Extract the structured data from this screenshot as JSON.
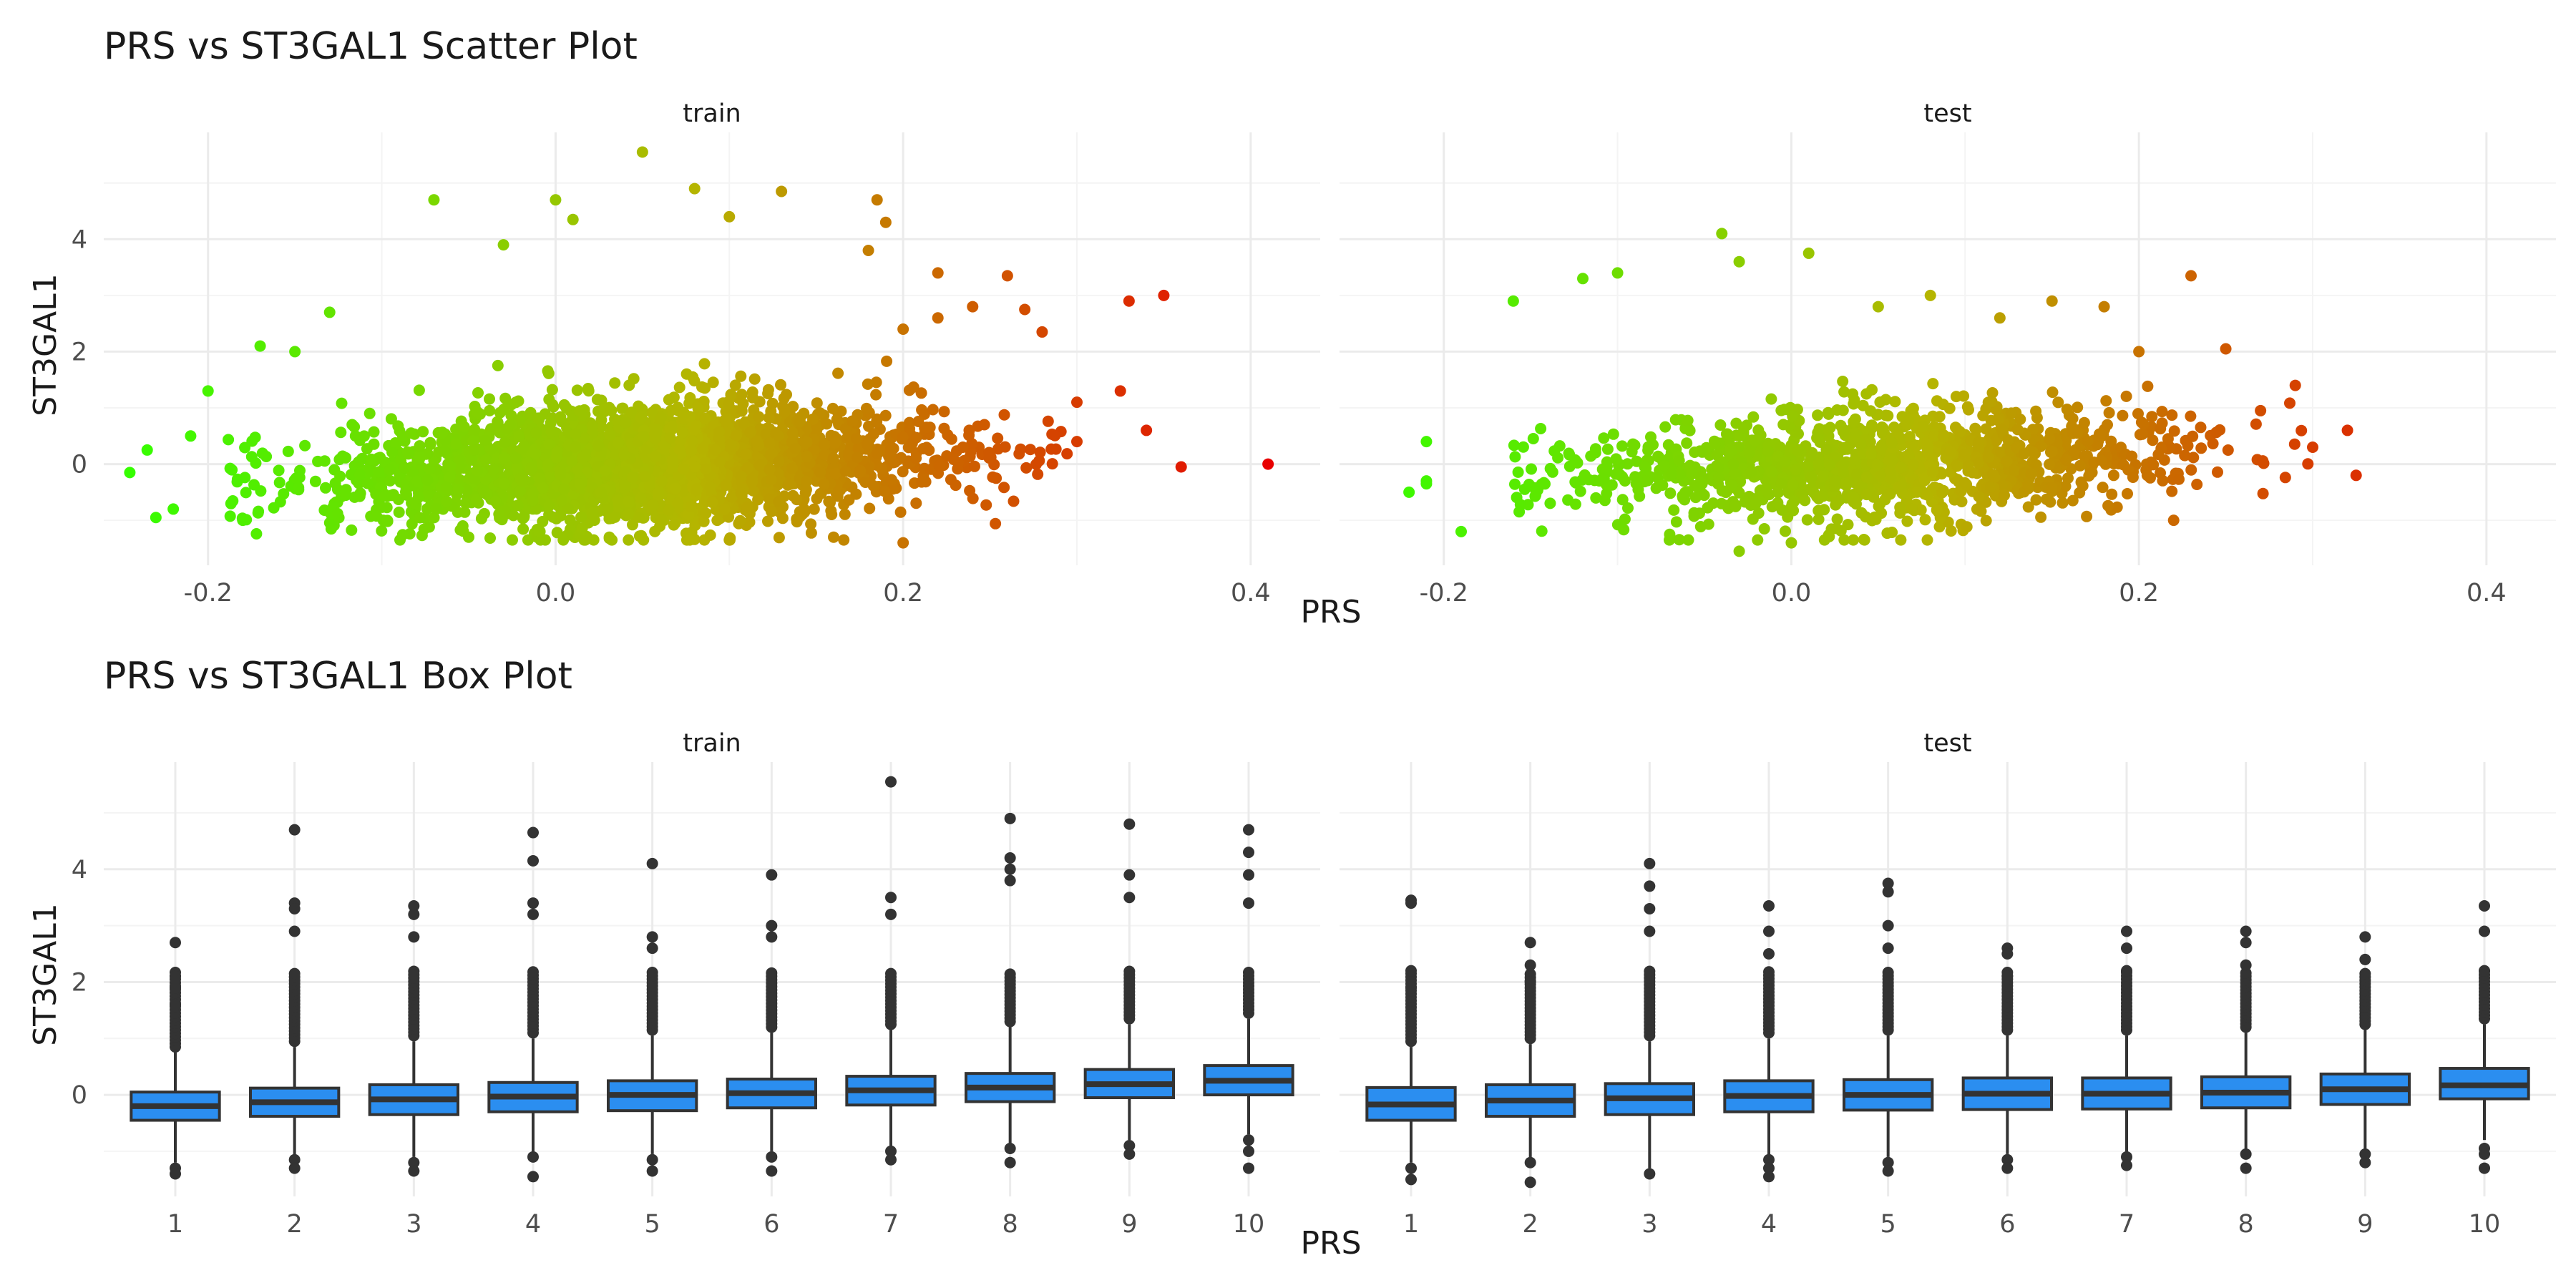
{
  "chart_data": [
    {
      "type": "scatter",
      "title": "PRS vs ST3GAL1 Scatter Plot",
      "xlabel": "PRS",
      "ylabel": "ST3GAL1",
      "facets": [
        "train",
        "test"
      ],
      "xlim": [
        -0.26,
        0.44
      ],
      "ylim": [
        -1.8,
        5.9
      ],
      "x_ticks": [
        -0.2,
        0.0,
        0.2,
        0.4
      ],
      "x_tick_labels": [
        "-0.2",
        "0.0",
        "0.2",
        "0.4"
      ],
      "y_ticks": [
        0,
        2,
        4
      ],
      "y_tick_labels": [
        "0",
        "2",
        "4"
      ],
      "color_scale": {
        "low": "#33ff00",
        "mid": "#b5b500",
        "high": "#e80000",
        "domain": [
          -0.25,
          0.41
        ]
      },
      "grid": true,
      "legend": "none",
      "panels": [
        {
          "name": "train",
          "bulk": {
            "x_range": [
              -0.19,
              0.3
            ],
            "mean_slope": 2.1,
            "spread_sd": 0.55,
            "n_points": 2600
          },
          "points": [
            {
              "x": 0.41,
              "y": 0.0
            },
            {
              "x": 0.36,
              "y": -0.05
            },
            {
              "x": 0.35,
              "y": 3.0
            },
            {
              "x": 0.33,
              "y": 2.9
            },
            {
              "x": 0.34,
              "y": 0.6
            },
            {
              "x": 0.325,
              "y": 1.3
            },
            {
              "x": 0.3,
              "y": 1.1
            },
            {
              "x": 0.3,
              "y": 0.4
            },
            {
              "x": 0.28,
              "y": 2.35
            },
            {
              "x": 0.26,
              "y": 3.35
            },
            {
              "x": 0.27,
              "y": 2.75
            },
            {
              "x": 0.24,
              "y": 2.8
            },
            {
              "x": 0.22,
              "y": 2.6
            },
            {
              "x": 0.2,
              "y": 2.4
            },
            {
              "x": 0.18,
              "y": 3.8
            },
            {
              "x": 0.185,
              "y": 4.7
            },
            {
              "x": 0.19,
              "y": 4.3
            },
            {
              "x": 0.13,
              "y": 4.85
            },
            {
              "x": 0.08,
              "y": 4.9
            },
            {
              "x": 0.05,
              "y": 5.55
            },
            {
              "x": -0.07,
              "y": 4.7
            },
            {
              "x": -0.03,
              "y": 3.9
            },
            {
              "x": 0.0,
              "y": 4.7
            },
            {
              "x": 0.01,
              "y": 4.35
            },
            {
              "x": -0.13,
              "y": 2.7
            },
            {
              "x": -0.17,
              "y": 2.1
            },
            {
              "x": -0.2,
              "y": 1.3
            },
            {
              "x": -0.21,
              "y": 0.5
            },
            {
              "x": -0.235,
              "y": 0.25
            },
            {
              "x": -0.245,
              "y": -0.15
            },
            {
              "x": -0.22,
              "y": -0.8
            },
            {
              "x": -0.23,
              "y": -0.95
            },
            {
              "x": 0.2,
              "y": -1.4
            },
            {
              "x": 0.16,
              "y": -1.3
            },
            {
              "x": -0.15,
              "y": 2.0
            },
            {
              "x": 0.1,
              "y": 4.4
            },
            {
              "x": 0.22,
              "y": 3.4
            },
            {
              "x": -0.18,
              "y": -1.0
            },
            {
              "x": -0.05,
              "y": -1.3
            },
            {
              "x": 0.1,
              "y": -1.35
            }
          ]
        },
        {
          "name": "test",
          "bulk": {
            "x_range": [
              -0.16,
              0.3
            ],
            "mean_slope": 1.9,
            "spread_sd": 0.5,
            "n_points": 1300
          },
          "points": [
            {
              "x": 0.325,
              "y": -0.2
            },
            {
              "x": 0.32,
              "y": 0.6
            },
            {
              "x": 0.3,
              "y": 0.3
            },
            {
              "x": 0.29,
              "y": 1.4
            },
            {
              "x": 0.27,
              "y": 0.95
            },
            {
              "x": 0.25,
              "y": 2.05
            },
            {
              "x": 0.23,
              "y": 3.35
            },
            {
              "x": 0.2,
              "y": 2.0
            },
            {
              "x": 0.18,
              "y": 2.8
            },
            {
              "x": 0.15,
              "y": 2.9
            },
            {
              "x": 0.12,
              "y": 2.6
            },
            {
              "x": 0.08,
              "y": 3.0
            },
            {
              "x": 0.05,
              "y": 2.8
            },
            {
              "x": 0.01,
              "y": 3.75
            },
            {
              "x": -0.03,
              "y": 3.6
            },
            {
              "x": -0.04,
              "y": 4.1
            },
            {
              "x": -0.1,
              "y": 3.4
            },
            {
              "x": -0.12,
              "y": 3.3
            },
            {
              "x": -0.16,
              "y": 2.9
            },
            {
              "x": -0.21,
              "y": 0.4
            },
            {
              "x": -0.22,
              "y": -0.5
            },
            {
              "x": -0.19,
              "y": -1.2
            },
            {
              "x": -0.21,
              "y": -0.3
            },
            {
              "x": -0.21,
              "y": -0.35
            },
            {
              "x": -0.03,
              "y": -1.55
            },
            {
              "x": 0.0,
              "y": -1.4
            },
            {
              "x": -0.07,
              "y": -1.25
            },
            {
              "x": 0.22,
              "y": -1.0
            }
          ]
        }
      ]
    },
    {
      "type": "box",
      "title": "PRS vs ST3GAL1 Box Plot",
      "xlabel": "PRS",
      "ylabel": "ST3GAL1",
      "facets": [
        "train",
        "test"
      ],
      "categories": [
        "1",
        "2",
        "3",
        "4",
        "5",
        "6",
        "7",
        "8",
        "9",
        "10"
      ],
      "ylim": [
        -1.8,
        5.9
      ],
      "y_ticks": [
        0,
        2,
        4
      ],
      "y_tick_labels": [
        "0",
        "2",
        "4"
      ],
      "box_color": "#2b8ef0",
      "grid": true,
      "panels": [
        {
          "name": "train",
          "boxes": [
            {
              "q1": -0.45,
              "median": -0.2,
              "q3": 0.05,
              "lower": -1.2,
              "upper": 0.75,
              "out_high": [
                0.85,
                2.7,
                2.1,
                1.9,
                1.6
              ],
              "out_low": [
                -1.3,
                -1.4
              ]
            },
            {
              "q1": -0.38,
              "median": -0.13,
              "q3": 0.12,
              "lower": -1.1,
              "upper": 0.85,
              "out_high": [
                0.95,
                4.7,
                3.4,
                3.3,
                2.9
              ],
              "out_low": [
                -1.15,
                -1.3
              ]
            },
            {
              "q1": -0.35,
              "median": -0.08,
              "q3": 0.18,
              "lower": -1.1,
              "upper": 0.95,
              "out_high": [
                1.05,
                3.35,
                3.2,
                2.8
              ],
              "out_low": [
                -1.2,
                -1.35
              ]
            },
            {
              "q1": -0.3,
              "median": -0.03,
              "q3": 0.22,
              "lower": -1.05,
              "upper": 1.0,
              "out_high": [
                1.1,
                4.65,
                4.15,
                3.4,
                3.2
              ],
              "out_low": [
                -1.1,
                -1.45
              ]
            },
            {
              "q1": -0.28,
              "median": 0.0,
              "q3": 0.25,
              "lower": -1.05,
              "upper": 1.05,
              "out_high": [
                1.15,
                4.1,
                2.8,
                2.6
              ],
              "out_low": [
                -1.15,
                -1.35
              ]
            },
            {
              "q1": -0.23,
              "median": 0.03,
              "q3": 0.28,
              "lower": -1.0,
              "upper": 1.1,
              "out_high": [
                1.2,
                3.9,
                3.0,
                2.8
              ],
              "out_low": [
                -1.1,
                -1.35
              ]
            },
            {
              "q1": -0.18,
              "median": 0.08,
              "q3": 0.33,
              "lower": -0.95,
              "upper": 1.15,
              "out_high": [
                1.25,
                5.55,
                3.5,
                3.2
              ],
              "out_low": [
                -1.0,
                -1.15
              ]
            },
            {
              "q1": -0.12,
              "median": 0.13,
              "q3": 0.38,
              "lower": -0.9,
              "upper": 1.2,
              "out_high": [
                1.3,
                4.9,
                4.2,
                4.0,
                3.8
              ],
              "out_low": [
                -0.95,
                -1.2
              ]
            },
            {
              "q1": -0.05,
              "median": 0.19,
              "q3": 0.45,
              "lower": -0.8,
              "upper": 1.25,
              "out_high": [
                1.35,
                4.8,
                3.9,
                3.5
              ],
              "out_low": [
                -0.9,
                -1.05
              ]
            },
            {
              "q1": 0.0,
              "median": 0.25,
              "q3": 0.52,
              "lower": -0.7,
              "upper": 1.35,
              "out_high": [
                1.45,
                4.7,
                4.3,
                3.9,
                3.4
              ],
              "out_low": [
                -0.8,
                -1.0,
                -1.3
              ]
            }
          ]
        },
        {
          "name": "test",
          "boxes": [
            {
              "q1": -0.45,
              "median": -0.17,
              "q3": 0.13,
              "lower": -1.2,
              "upper": 0.85,
              "out_high": [
                0.95,
                3.45,
                3.4,
                2.2,
                1.9
              ],
              "out_low": [
                -1.3,
                -1.5
              ]
            },
            {
              "q1": -0.38,
              "median": -0.1,
              "q3": 0.18,
              "lower": -1.15,
              "upper": 0.9,
              "out_high": [
                1.0,
                2.7,
                2.3,
                2.0
              ],
              "out_low": [
                -1.2,
                -1.55
              ]
            },
            {
              "q1": -0.35,
              "median": -0.06,
              "q3": 0.2,
              "lower": -1.3,
              "upper": 0.95,
              "out_high": [
                1.05,
                4.1,
                3.7,
                3.3,
                2.9
              ],
              "out_low": [
                -1.4
              ]
            },
            {
              "q1": -0.3,
              "median": -0.02,
              "q3": 0.25,
              "lower": -1.1,
              "upper": 1.0,
              "out_high": [
                1.1,
                3.35,
                2.9,
                2.5
              ],
              "out_low": [
                -1.15,
                -1.3,
                -1.45
              ]
            },
            {
              "q1": -0.27,
              "median": 0.0,
              "q3": 0.27,
              "lower": -1.1,
              "upper": 1.05,
              "out_high": [
                1.15,
                3.75,
                3.6,
                3.0,
                2.6
              ],
              "out_low": [
                -1.2,
                -1.35
              ]
            },
            {
              "q1": -0.26,
              "median": 0.02,
              "q3": 0.3,
              "lower": -1.05,
              "upper": 1.05,
              "out_high": [
                1.15,
                2.6,
                2.5,
                2.1
              ],
              "out_low": [
                -1.15,
                -1.3
              ]
            },
            {
              "q1": -0.25,
              "median": 0.02,
              "q3": 0.3,
              "lower": -1.05,
              "upper": 1.05,
              "out_high": [
                1.15,
                2.9,
                2.6,
                2.2
              ],
              "out_low": [
                -1.1,
                -1.25
              ]
            },
            {
              "q1": -0.23,
              "median": 0.04,
              "q3": 0.32,
              "lower": -0.95,
              "upper": 1.1,
              "out_high": [
                1.2,
                2.9,
                2.7,
                2.3
              ],
              "out_low": [
                -1.05,
                -1.3
              ]
            },
            {
              "q1": -0.17,
              "median": 0.1,
              "q3": 0.37,
              "lower": -0.95,
              "upper": 1.15,
              "out_high": [
                1.25,
                2.8,
                2.4
              ],
              "out_low": [
                -1.05,
                -1.2
              ]
            },
            {
              "q1": -0.07,
              "median": 0.17,
              "q3": 0.47,
              "lower": -0.8,
              "upper": 1.25,
              "out_high": [
                1.35,
                3.35,
                2.9,
                2.2
              ],
              "out_low": [
                -0.95,
                -1.05,
                -1.3
              ]
            }
          ]
        }
      ]
    }
  ]
}
